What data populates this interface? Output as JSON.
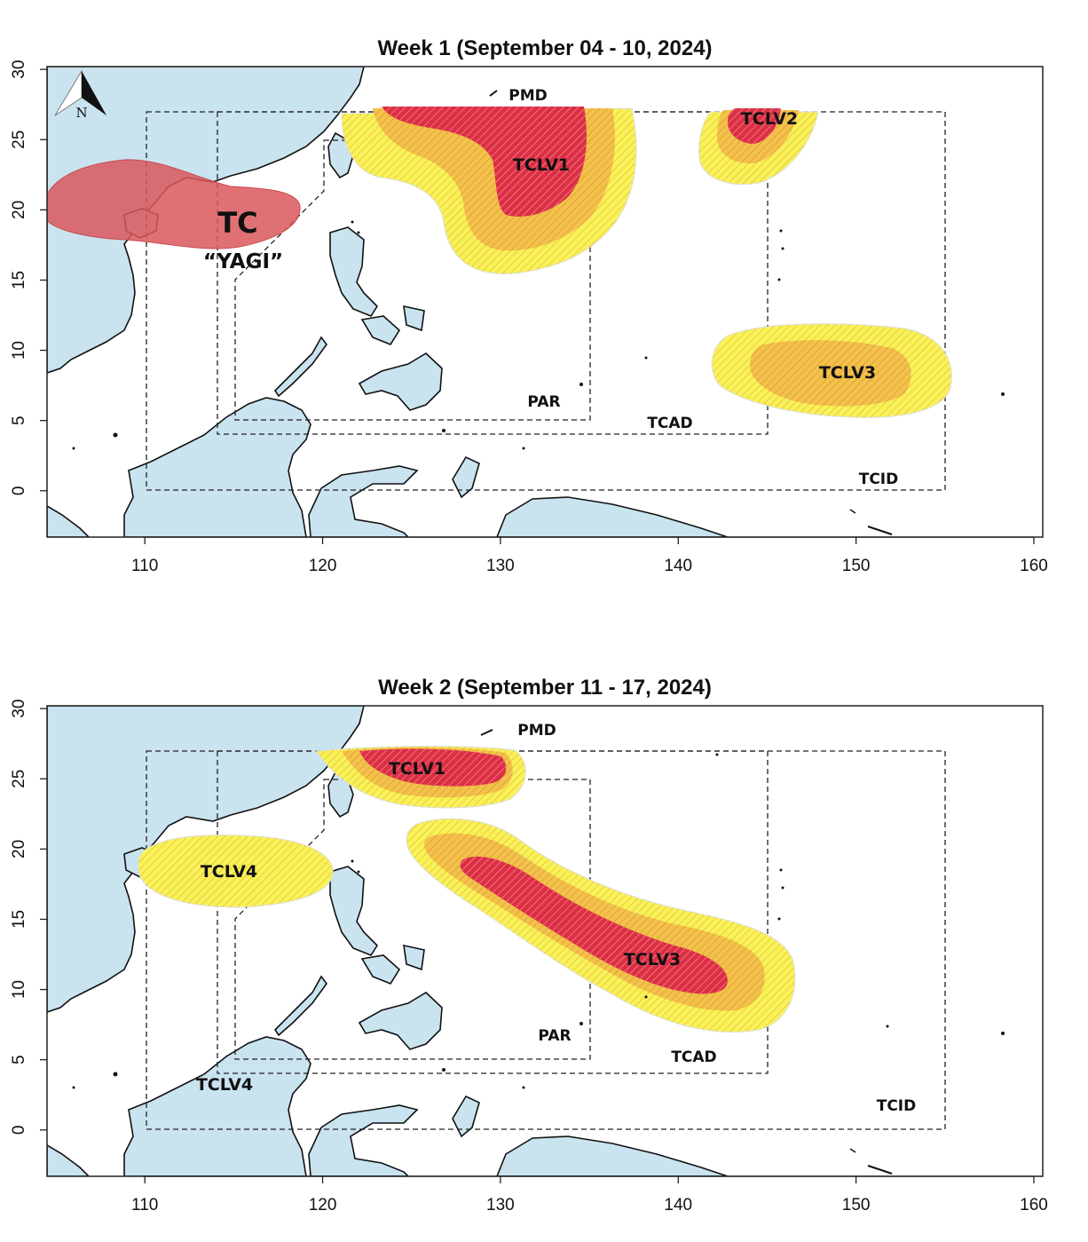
{
  "colors": {
    "land": "#c9e3ef",
    "ocean": "#ffffff",
    "tc_zone": "#d9585d",
    "low": "#f8f25a",
    "moderate": "#f2c24a",
    "high": "#db2f44",
    "hatch_low": "#e8b62a",
    "hatch_high": "#ff9aa6"
  },
  "compass": {
    "label": "N",
    "icon": "north-arrow-icon"
  },
  "axes": {
    "x_ticks": [
      "110",
      "120",
      "130",
      "140",
      "150",
      "160"
    ],
    "y_ticks": [
      "0",
      "5",
      "10",
      "15",
      "20",
      "25",
      "30"
    ],
    "lon_range": [
      104.5,
      160.5
    ],
    "lat_range": [
      -3.3,
      30.2
    ]
  },
  "region_labels": {
    "pmd": "PMD",
    "par": "PAR",
    "tcad": "TCAD",
    "tcid": "TCID"
  },
  "week1": {
    "title": "Week 1 (September 04 - 10, 2024)",
    "tc_label": "TC",
    "tc_name": "“YAGI”",
    "areas": [
      {
        "label": "TCLV1",
        "levels": [
          "low",
          "moderate",
          "high"
        ]
      },
      {
        "label": "TCLV2",
        "levels": [
          "low",
          "moderate",
          "high"
        ]
      },
      {
        "label": "TCLV3",
        "levels": [
          "low",
          "moderate"
        ]
      }
    ]
  },
  "week2": {
    "title": "Week 2 (September 11 - 17, 2024)",
    "areas": [
      {
        "label": "TCLV1",
        "levels": [
          "low",
          "moderate",
          "high"
        ]
      },
      {
        "label": "TCLV4",
        "levels": [
          "low"
        ]
      },
      {
        "label": "TCLV3",
        "levels": [
          "low",
          "moderate",
          "high"
        ]
      }
    ],
    "tclv4_remnant_label": "TCLV4"
  }
}
